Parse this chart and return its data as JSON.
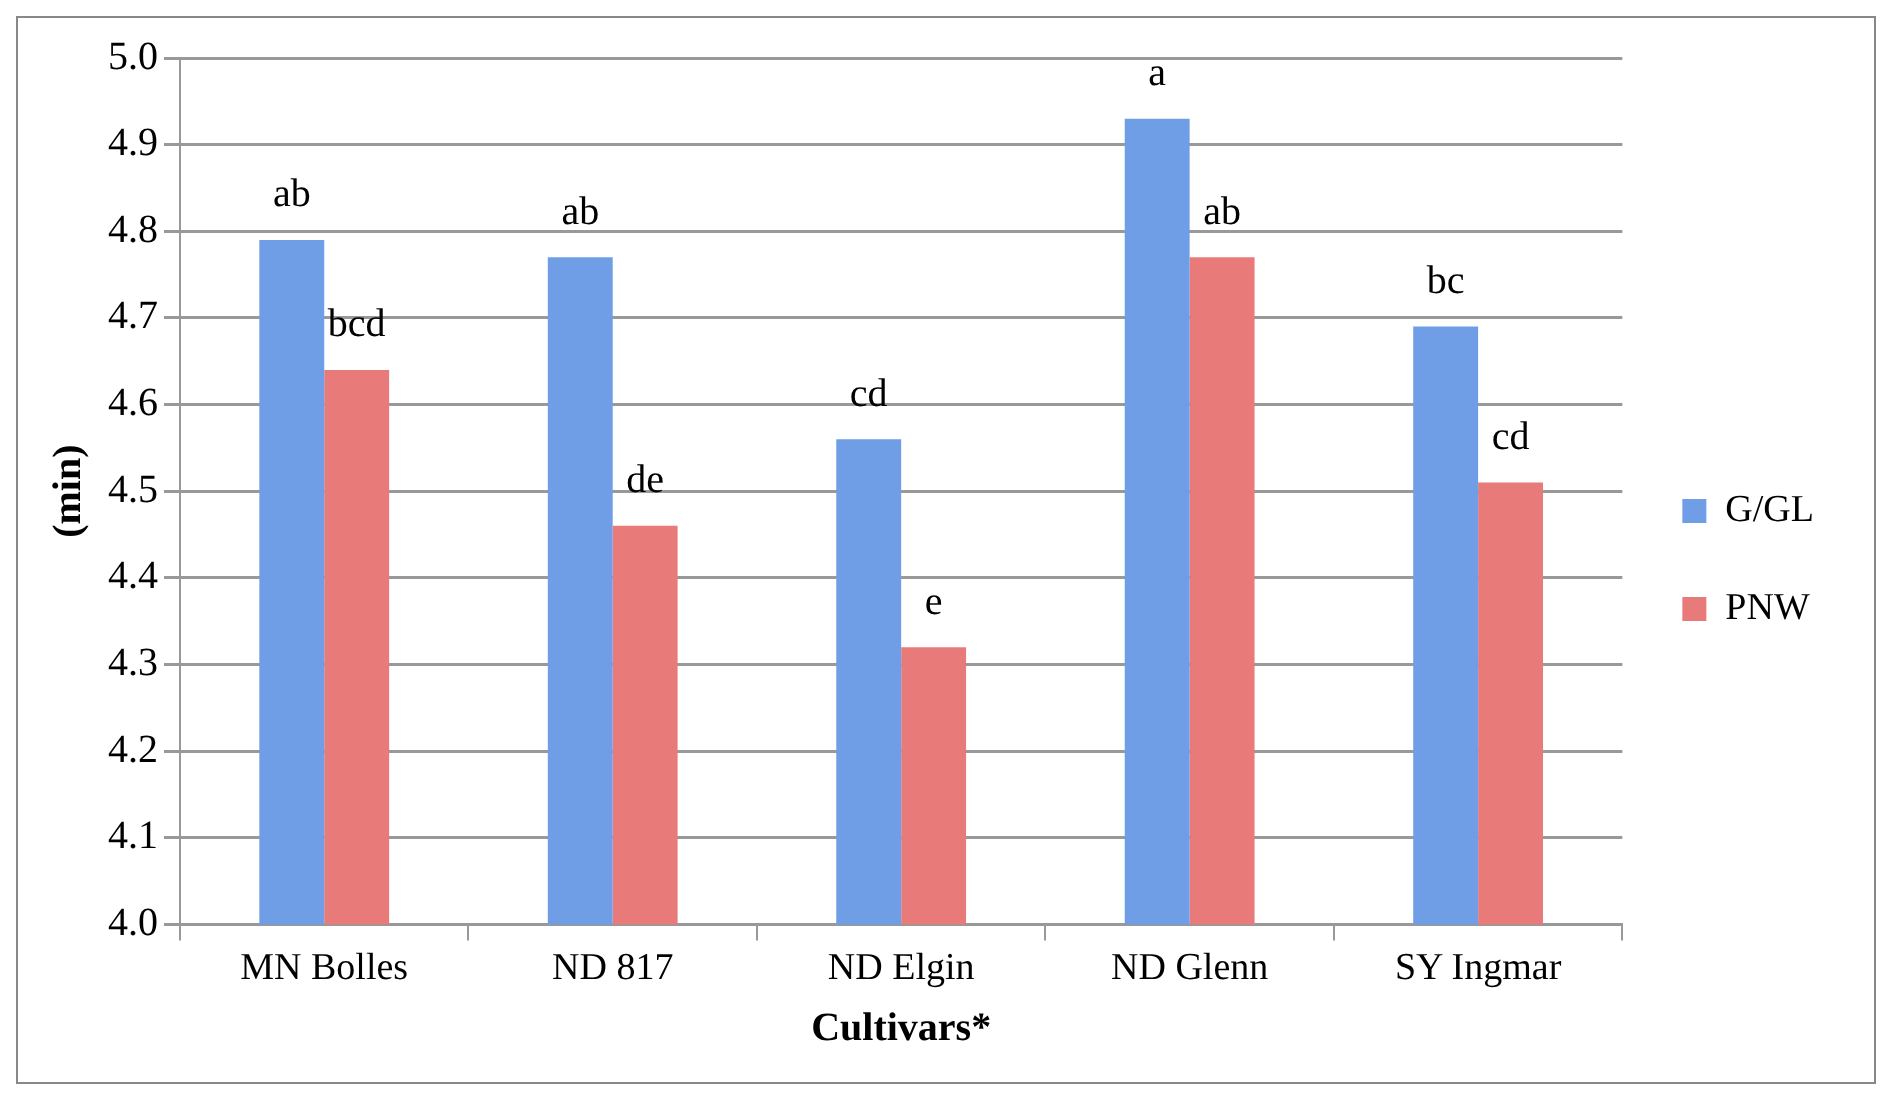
{
  "chart_data": {
    "type": "bar",
    "xlabel": "Cultivars*",
    "ylabel": "(min)",
    "categories": [
      "MN Bolles",
      "ND 817",
      "ND Elgin",
      "ND Glenn",
      "SY Ingmar"
    ],
    "series": [
      {
        "name": "G/GL",
        "color": "#6f9ee6",
        "values": [
          4.79,
          4.77,
          4.56,
          4.93,
          4.69
        ]
      },
      {
        "name": "PNW",
        "color": "#e87a7a",
        "values": [
          4.64,
          4.46,
          4.32,
          4.77,
          4.51
        ]
      }
    ],
    "ylim": [
      4.0,
      5.0
    ],
    "yticks": [
      {
        "value": 4.0,
        "label": "4.0"
      },
      {
        "value": 4.1,
        "label": "4.1"
      },
      {
        "value": 4.2,
        "label": "4.2"
      },
      {
        "value": 4.3,
        "label": "4.3"
      },
      {
        "value": 4.4,
        "label": "4.4"
      },
      {
        "value": 4.5,
        "label": "4.5"
      },
      {
        "value": 4.6,
        "label": "4.6"
      },
      {
        "value": 4.7,
        "label": "4.7"
      },
      {
        "value": 4.8,
        "label": "4.8"
      },
      {
        "value": 4.9,
        "label": "4.9"
      },
      {
        "value": 5.0,
        "label": "5.0"
      }
    ],
    "grid": "y",
    "legend": "right",
    "annotations": [
      "ab",
      "bcd",
      "ab",
      "de",
      "cd",
      "e",
      "a",
      "ab",
      "bc",
      "cd"
    ]
  }
}
